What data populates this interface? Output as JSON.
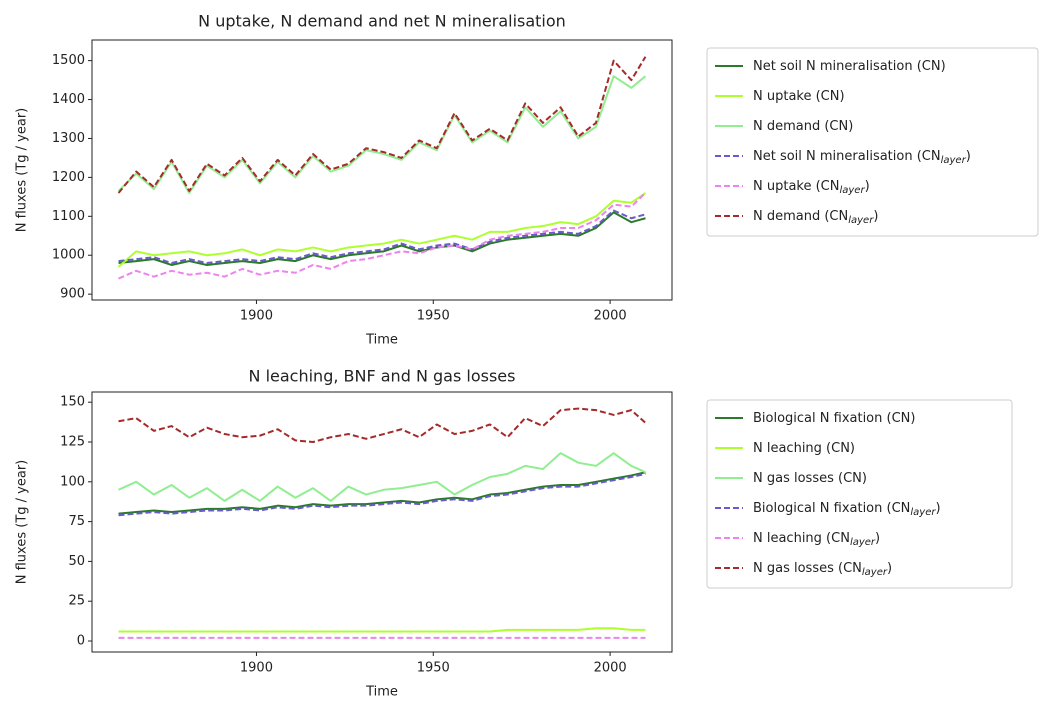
{
  "chart_data": [
    {
      "type": "line",
      "title": "N uptake, N demand and net N mineralisation",
      "xlabel": "Time",
      "ylabel": "N fluxes (Tg / year)",
      "x": [
        1861,
        1866,
        1871,
        1876,
        1881,
        1886,
        1891,
        1896,
        1901,
        1906,
        1911,
        1916,
        1921,
        1926,
        1931,
        1936,
        1941,
        1946,
        1951,
        1956,
        1961,
        1966,
        1971,
        1976,
        1981,
        1986,
        1991,
        1996,
        2001,
        2006,
        2010
      ],
      "xlim": [
        1853.5,
        2017.5
      ],
      "xticks": [
        1900,
        1950,
        2000
      ],
      "ylim": [
        885,
        1553
      ],
      "yticks": [
        900,
        1000,
        1100,
        1200,
        1300,
        1400,
        1500
      ],
      "legend": "outside-right",
      "series": [
        {
          "name": "Net soil N mineralisation (CN)",
          "color": "#2a7a2a",
          "dashed": false,
          "values": [
            980,
            985,
            990,
            975,
            985,
            975,
            980,
            985,
            980,
            990,
            985,
            1000,
            990,
            1000,
            1005,
            1010,
            1025,
            1010,
            1020,
            1025,
            1010,
            1030,
            1040,
            1045,
            1050,
            1055,
            1050,
            1070,
            1110,
            1085,
            1095
          ]
        },
        {
          "name": "N uptake (CN)",
          "color": "#adff2f",
          "dashed": false,
          "values": [
            970,
            1010,
            1000,
            1005,
            1010,
            1000,
            1005,
            1015,
            1000,
            1015,
            1010,
            1020,
            1010,
            1020,
            1025,
            1030,
            1040,
            1030,
            1040,
            1050,
            1040,
            1060,
            1060,
            1070,
            1075,
            1085,
            1080,
            1100,
            1140,
            1135,
            1160
          ]
        },
        {
          "name": "N demand (CN)",
          "color": "#90ee90",
          "dashed": false,
          "values": [
            1165,
            1210,
            1170,
            1240,
            1160,
            1230,
            1200,
            1245,
            1185,
            1240,
            1200,
            1255,
            1215,
            1230,
            1270,
            1260,
            1245,
            1290,
            1270,
            1360,
            1290,
            1320,
            1290,
            1380,
            1330,
            1370,
            1300,
            1330,
            1460,
            1430,
            1460
          ]
        },
        {
          "name": "Net soil N mineralisation (CN_layer)",
          "color": "#6a5acd",
          "dashed": true,
          "values": [
            985,
            990,
            995,
            980,
            990,
            980,
            985,
            990,
            985,
            995,
            990,
            1005,
            995,
            1005,
            1010,
            1015,
            1030,
            1015,
            1025,
            1030,
            1015,
            1035,
            1045,
            1050,
            1055,
            1060,
            1055,
            1075,
            1115,
            1095,
            1105
          ]
        },
        {
          "name": "N uptake (CN_layer)",
          "color": "#ee82ee",
          "dashed": true,
          "values": [
            940,
            960,
            945,
            960,
            950,
            955,
            945,
            965,
            950,
            960,
            955,
            975,
            965,
            985,
            990,
            1000,
            1010,
            1005,
            1020,
            1025,
            1015,
            1040,
            1050,
            1055,
            1060,
            1070,
            1070,
            1090,
            1130,
            1125,
            1160
          ]
        },
        {
          "name": "N demand (CN_layer)",
          "color": "#a52a2a",
          "dashed": true,
          "values": [
            1160,
            1215,
            1175,
            1245,
            1165,
            1235,
            1205,
            1250,
            1190,
            1245,
            1205,
            1260,
            1220,
            1235,
            1275,
            1265,
            1250,
            1295,
            1275,
            1365,
            1295,
            1325,
            1295,
            1390,
            1340,
            1380,
            1305,
            1340,
            1500,
            1450,
            1510
          ]
        }
      ]
    },
    {
      "type": "line",
      "title": "N leaching, BNF and N gas losses",
      "xlabel": "Time",
      "ylabel": "N fluxes (Tg / year)",
      "x": [
        1861,
        1866,
        1871,
        1876,
        1881,
        1886,
        1891,
        1896,
        1901,
        1906,
        1911,
        1916,
        1921,
        1926,
        1931,
        1936,
        1941,
        1946,
        1951,
        1956,
        1961,
        1966,
        1971,
        1976,
        1981,
        1986,
        1991,
        1996,
        2001,
        2006,
        2010
      ],
      "xlim": [
        1853.5,
        2017.5
      ],
      "xticks": [
        1900,
        1950,
        2000
      ],
      "ylim": [
        -6.9,
        156.4
      ],
      "yticks": [
        0,
        25,
        50,
        75,
        100,
        125,
        150
      ],
      "legend": "outside-right",
      "series": [
        {
          "name": "Biological N fixation (CN)",
          "color": "#2a7a2a",
          "dashed": false,
          "values": [
            80,
            81,
            82,
            81,
            82,
            83,
            83,
            84,
            83,
            85,
            84,
            86,
            85,
            86,
            86,
            87,
            88,
            87,
            89,
            90,
            89,
            92,
            93,
            95,
            97,
            98,
            98,
            100,
            102,
            104,
            106
          ]
        },
        {
          "name": "N leaching (CN)",
          "color": "#adff2f",
          "dashed": false,
          "values": [
            6,
            6,
            6,
            6,
            6,
            6,
            6,
            6,
            6,
            6,
            6,
            6,
            6,
            6,
            6,
            6,
            6,
            6,
            6,
            6,
            6,
            6,
            7,
            7,
            7,
            7,
            7,
            8,
            8,
            7,
            7
          ]
        },
        {
          "name": "N gas losses (CN)",
          "color": "#90ee90",
          "dashed": false,
          "values": [
            95,
            100,
            92,
            98,
            90,
            96,
            88,
            95,
            88,
            97,
            90,
            96,
            88,
            97,
            92,
            95,
            96,
            98,
            100,
            92,
            98,
            103,
            105,
            110,
            108,
            118,
            112,
            110,
            118,
            110,
            106
          ]
        },
        {
          "name": "Biological N fixation (CN_layer)",
          "color": "#6a5acd",
          "dashed": true,
          "values": [
            79,
            80,
            81,
            80,
            81,
            82,
            82,
            83,
            82,
            84,
            83,
            85,
            84,
            85,
            85,
            86,
            87,
            86,
            88,
            89,
            88,
            91,
            92,
            94,
            96,
            97,
            97,
            99,
            101,
            103,
            105
          ]
        },
        {
          "name": "N leaching (CN_layer)",
          "color": "#ee82ee",
          "dashed": true,
          "values": [
            2,
            2,
            2,
            2,
            2,
            2,
            2,
            2,
            2,
            2,
            2,
            2,
            2,
            2,
            2,
            2,
            2,
            2,
            2,
            2,
            2,
            2,
            2,
            2,
            2,
            2,
            2,
            2,
            2,
            2,
            2
          ]
        },
        {
          "name": "N gas losses (CN_layer)",
          "color": "#a52a2a",
          "dashed": true,
          "values": [
            138,
            140,
            132,
            135,
            128,
            134,
            130,
            128,
            129,
            133,
            126,
            125,
            128,
            130,
            127,
            130,
            133,
            128,
            136,
            130,
            132,
            136,
            128,
            140,
            135,
            145,
            146,
            145,
            142,
            145,
            137
          ]
        }
      ]
    }
  ]
}
